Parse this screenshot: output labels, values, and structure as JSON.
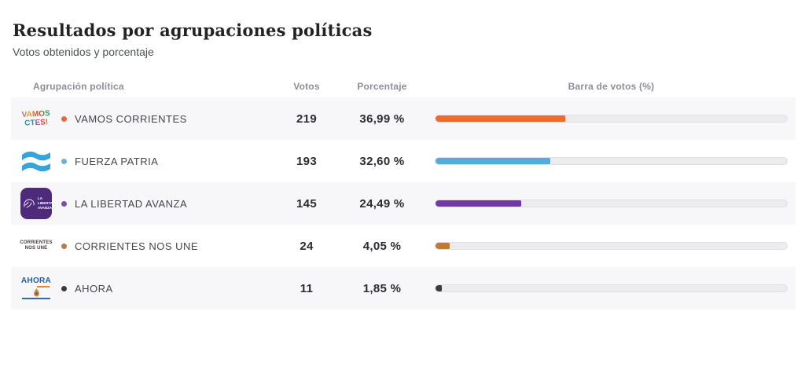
{
  "page": {
    "title": "Resultados por agrupaciones políticas",
    "subtitle": "Votos obtenidos y porcentaje"
  },
  "table": {
    "headers": {
      "party": "Agrupación política",
      "votes": "Votos",
      "percentage": "Porcentaje",
      "bar": "Barra de votos (%)"
    },
    "rows": [
      {
        "party": "VAMOS CORRIENTES",
        "votes": "219",
        "percentage": "36,99 %",
        "percent_value": 36.99,
        "bar_color": "#f2692e",
        "dot_color": "#de6a3f",
        "logo": {
          "line1": "VAMOS",
          "line2": "CTES!"
        }
      },
      {
        "party": "FUERZA PATRIA",
        "votes": "193",
        "percentage": "32,60 %",
        "percent_value": 32.6,
        "bar_color": "#57abdc",
        "dot_color": "#6fb0d8",
        "logo": {}
      },
      {
        "party": "LA LIBERTAD AVANZA",
        "votes": "145",
        "percentage": "24,49 %",
        "percent_value": 24.49,
        "bar_color": "#7438a6",
        "dot_color": "#7a4fa5",
        "logo": {
          "text": "LA LIBERTAD AVANZA"
        }
      },
      {
        "party": "CORRIENTES NOS UNE",
        "votes": "24",
        "percentage": "4,05 %",
        "percent_value": 4.05,
        "bar_color": "#c1793a",
        "dot_color": "#b07d4e",
        "logo": {
          "line1": "CORRIENTES",
          "line2": "NOS UNE"
        }
      },
      {
        "party": "AHORA",
        "votes": "11",
        "percentage": "1,85 %",
        "percent_value": 1.85,
        "bar_color": "#3b3b3e",
        "dot_color": "#3b3b3e",
        "logo": {
          "line1": "AHORA"
        }
      }
    ]
  },
  "chart_data": {
    "type": "bar",
    "orientation": "horizontal",
    "title": "Resultados por agrupaciones políticas",
    "subtitle": "Votos obtenidos y porcentaje",
    "categories": [
      "VAMOS CORRIENTES",
      "FUERZA PATRIA",
      "LA LIBERTAD AVANZA",
      "CORRIENTES NOS UNE",
      "AHORA"
    ],
    "series": [
      {
        "name": "Votos",
        "values": [
          219,
          193,
          145,
          24,
          11
        ]
      },
      {
        "name": "Porcentaje",
        "values": [
          36.99,
          32.6,
          24.49,
          4.05,
          1.85
        ]
      }
    ],
    "bar_axis_label": "Barra de votos (%)",
    "xlim": [
      0,
      100
    ],
    "grid": false,
    "legend": false,
    "bar_colors": [
      "#f2692e",
      "#57abdc",
      "#7438a6",
      "#c1793a",
      "#3b3b3e"
    ]
  }
}
